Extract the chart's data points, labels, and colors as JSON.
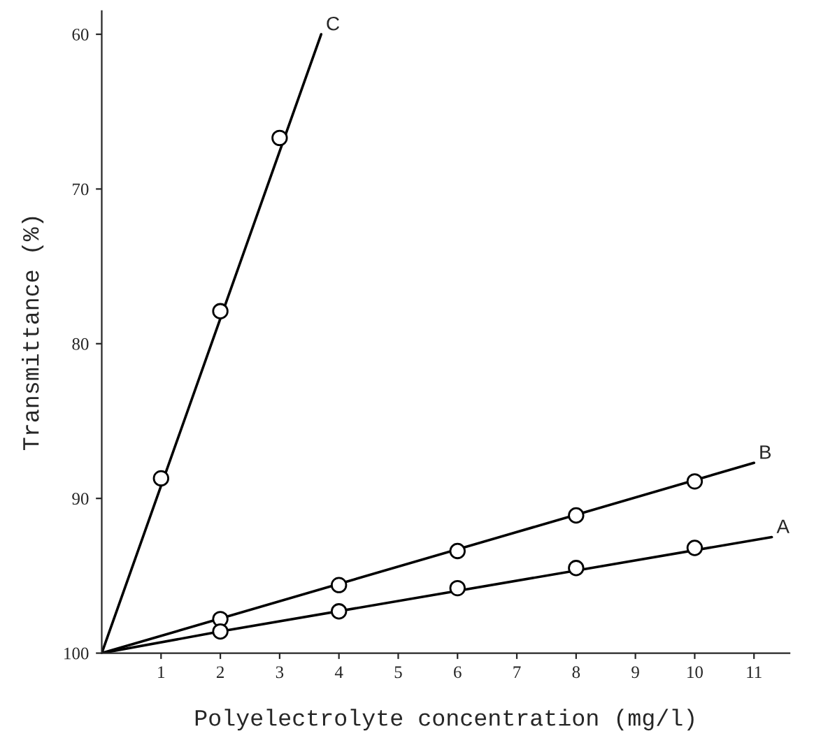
{
  "chart_data": {
    "type": "line",
    "xlabel": "Polyelectrolyte concentration (mg/l)",
    "ylabel": "Transmittance (%)",
    "xlim": [
      0,
      11.6
    ],
    "xticks": [
      1,
      2,
      3,
      4,
      5,
      6,
      7,
      8,
      9,
      10,
      11
    ],
    "ylim": [
      100,
      58.5
    ],
    "yticks": [
      60,
      70,
      80,
      90,
      100
    ],
    "grid": false,
    "legend": false,
    "line_style": "solid",
    "series": [
      {
        "name": "C",
        "color": "#000000",
        "x": [
          0,
          3.7
        ],
        "values": [
          100,
          60
        ]
      },
      {
        "name": "B",
        "color": "#000000",
        "x": [
          0,
          11
        ],
        "values": [
          100,
          87.7
        ]
      },
      {
        "name": "A",
        "color": "#000000",
        "x": [
          0,
          2,
          11.3
        ],
        "values": [
          100,
          98.6,
          92.5
        ]
      },
      {
        "type": "scatter",
        "marker": "circle",
        "color": "#000000",
        "x": [
          1,
          2,
          3
        ],
        "values": [
          88.7,
          77.9,
          66.7
        ]
      },
      {
        "type": "scatter",
        "marker": "circle",
        "color": "#000000",
        "x": [
          2,
          4,
          6,
          8,
          10
        ],
        "values": [
          97.8,
          95.6,
          93.4,
          91.1,
          88.9
        ]
      },
      {
        "type": "scatter",
        "marker": "circle",
        "color": "#000000",
        "x": [
          2,
          4,
          6,
          8,
          10
        ],
        "values": [
          98.6,
          97.3,
          95.8,
          94.5,
          93.2
        ]
      }
    ]
  }
}
